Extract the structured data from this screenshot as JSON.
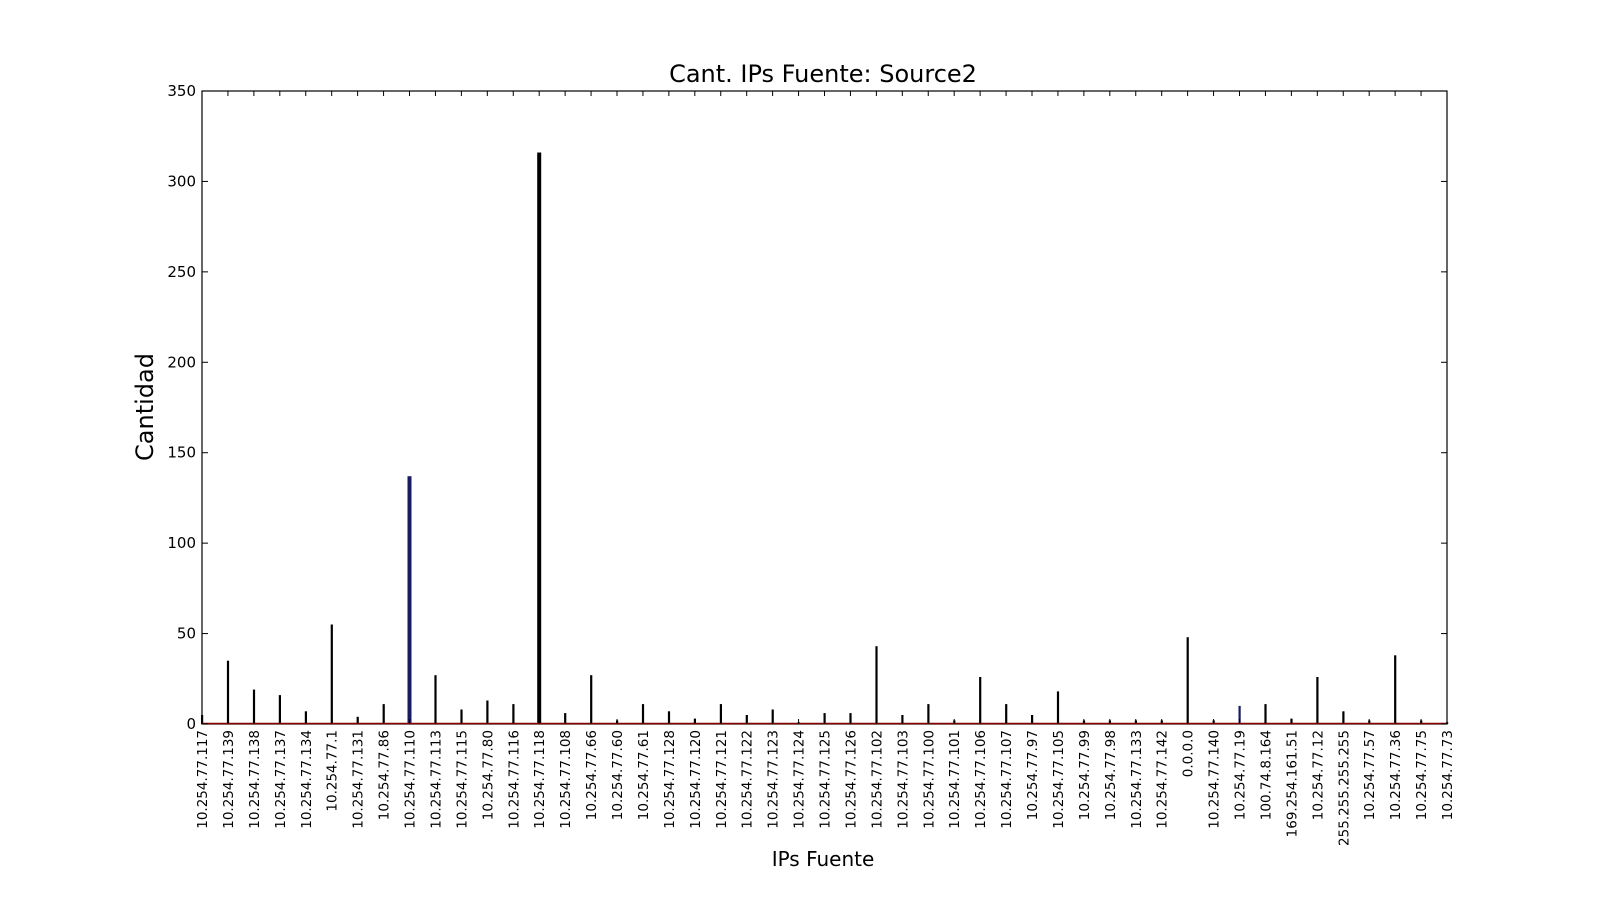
{
  "chart_data": {
    "type": "bar",
    "title": "Cant. IPs Fuente: Source2",
    "xlabel": "IPs Fuente",
    "ylabel": "Cantidad",
    "ylim": [
      0,
      350
    ],
    "yticks": [
      0,
      50,
      100,
      150,
      200,
      250,
      300,
      350
    ],
    "grid": false,
    "categories": [
      "10.254.77.117",
      "10.254.77.139",
      "10.254.77.138",
      "10.254.77.137",
      "10.254.77.134",
      "10.254.77.1",
      "10.254.77.131",
      "10.254.77.86",
      "10.254.77.110",
      "10.254.77.113",
      "10.254.77.115",
      "10.254.77.80",
      "10.254.77.116",
      "10.254.77.118",
      "10.254.77.108",
      "10.254.77.66",
      "10.254.77.60",
      "10.254.77.61",
      "10.254.77.128",
      "10.254.77.120",
      "10.254.77.121",
      "10.254.77.122",
      "10.254.77.123",
      "10.254.77.124",
      "10.254.77.125",
      "10.254.77.126",
      "10.254.77.102",
      "10.254.77.103",
      "10.254.77.100",
      "10.254.77.101",
      "10.254.77.106",
      "10.254.77.107",
      "10.254.77.97",
      "10.254.77.105",
      "10.254.77.99",
      "10.254.77.98",
      "10.254.77.133",
      "10.254.77.142",
      "0.0.0.0",
      "10.254.77.140",
      "10.254.77.19",
      "100.74.8.164",
      "169.254.161.51",
      "10.254.77.12",
      "255.255.255.255",
      "10.254.77.57",
      "10.254.77.36",
      "10.254.77.75",
      "10.254.77.73"
    ],
    "series": [
      {
        "values": [
          5,
          35,
          19,
          16,
          7,
          55,
          4,
          11,
          137,
          27,
          8,
          13,
          11,
          316,
          6,
          27,
          2,
          11,
          7,
          3,
          11,
          5,
          8,
          1,
          6,
          6,
          43,
          5,
          11,
          2,
          26,
          11,
          5,
          18,
          2,
          2,
          2,
          2,
          48,
          2,
          10,
          11,
          3,
          26,
          7,
          2,
          38,
          2,
          1
        ]
      }
    ],
    "colors": {
      "bar": "#000000",
      "bar_highlight": "#1a1a5e",
      "baseline": "#8b0000"
    }
  }
}
